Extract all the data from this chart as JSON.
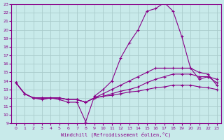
{
  "xlabel": "Windchill (Refroidissement éolien,°C)",
  "background_color": "#c8eaea",
  "grid_color": "#b0d0d0",
  "line_color": "#880088",
  "xlim": [
    -0.5,
    23.5
  ],
  "ylim": [
    9,
    23
  ],
  "x_ticks": [
    0,
    1,
    2,
    3,
    4,
    5,
    6,
    7,
    8,
    9,
    10,
    11,
    12,
    13,
    14,
    15,
    16,
    17,
    18,
    19,
    20,
    21,
    22,
    23
  ],
  "y_ticks": [
    9,
    10,
    11,
    12,
    13,
    14,
    15,
    16,
    17,
    18,
    19,
    20,
    21,
    22,
    23
  ],
  "series": [
    {
      "x": [
        0,
        1,
        2,
        3,
        4,
        5,
        6,
        7,
        8,
        9,
        10,
        11,
        12,
        13,
        14,
        15,
        16,
        17,
        18,
        19,
        20,
        21,
        22,
        23
      ],
      "y": [
        13.8,
        12.5,
        12.0,
        11.8,
        12.0,
        11.8,
        11.5,
        11.5,
        9.2,
        12.2,
        13.0,
        14.0,
        16.7,
        18.5,
        20.0,
        22.2,
        22.5,
        23.2,
        22.2,
        19.2,
        15.5,
        14.2,
        14.5,
        14.2
      ]
    },
    {
      "x": [
        0,
        1,
        2,
        3,
        4,
        5,
        6,
        7,
        8,
        9,
        10,
        11,
        12,
        13,
        14,
        15,
        16,
        17,
        18,
        19,
        20,
        21,
        22,
        23
      ],
      "y": [
        13.8,
        12.5,
        12.0,
        12.0,
        12.0,
        12.0,
        11.8,
        11.8,
        11.5,
        12.0,
        12.5,
        13.0,
        13.5,
        14.0,
        14.5,
        15.0,
        15.5,
        15.5,
        15.5,
        15.5,
        15.5,
        15.0,
        14.8,
        13.5
      ]
    },
    {
      "x": [
        0,
        1,
        2,
        3,
        4,
        5,
        6,
        7,
        8,
        9,
        10,
        11,
        12,
        13,
        14,
        15,
        16,
        17,
        18,
        19,
        20,
        21,
        22,
        23
      ],
      "y": [
        13.8,
        12.5,
        12.0,
        12.0,
        12.0,
        12.0,
        11.8,
        11.8,
        11.5,
        12.0,
        12.2,
        12.5,
        12.8,
        13.0,
        13.3,
        13.8,
        14.2,
        14.5,
        14.8,
        14.8,
        14.8,
        14.5,
        14.5,
        13.8
      ]
    },
    {
      "x": [
        0,
        1,
        2,
        3,
        4,
        5,
        6,
        7,
        8,
        9,
        10,
        11,
        12,
        13,
        14,
        15,
        16,
        17,
        18,
        19,
        20,
        21,
        22,
        23
      ],
      "y": [
        13.8,
        12.5,
        12.0,
        12.0,
        12.0,
        12.0,
        11.8,
        11.8,
        11.5,
        12.0,
        12.2,
        12.3,
        12.5,
        12.7,
        12.8,
        13.0,
        13.2,
        13.3,
        13.5,
        13.5,
        13.5,
        13.3,
        13.2,
        13.0
      ]
    }
  ]
}
